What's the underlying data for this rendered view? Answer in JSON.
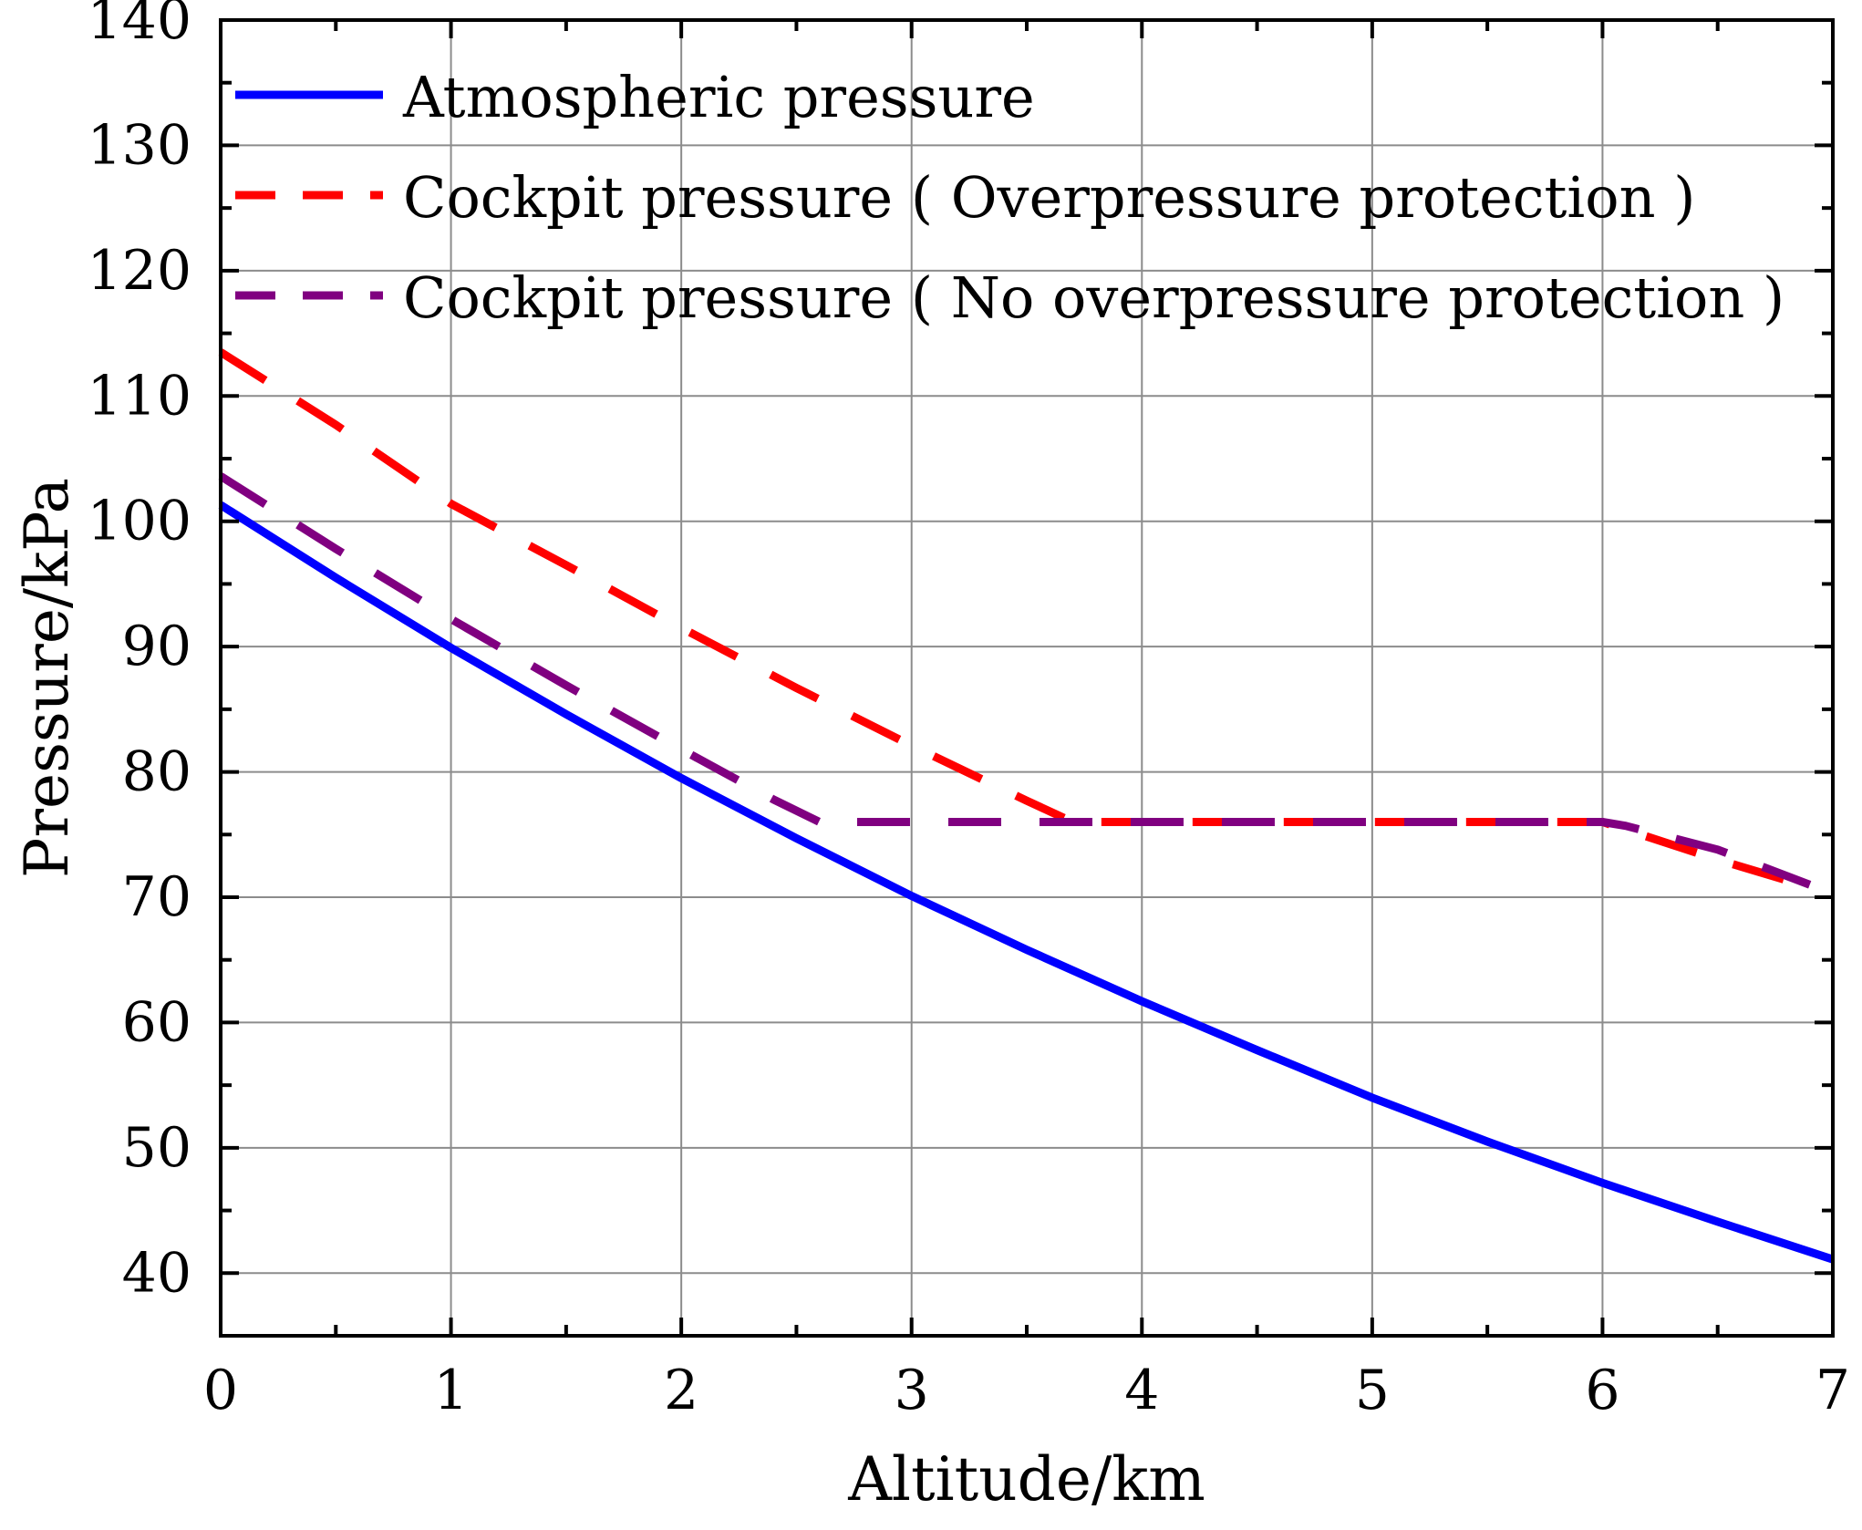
{
  "chart_data": {
    "type": "line",
    "title": "",
    "xlabel": "Altitude/km",
    "ylabel": "Pressure/kPa",
    "xlim": [
      0,
      7
    ],
    "ylim": [
      35,
      140
    ],
    "xticks": [
      0,
      1,
      2,
      3,
      4,
      5,
      6,
      7
    ],
    "yticks": [
      40,
      50,
      60,
      70,
      80,
      90,
      100,
      110,
      120,
      130,
      140
    ],
    "grid": true,
    "legend_position": "top-left",
    "series": [
      {
        "name": "Atmospheric pressure",
        "color": "#0000ff",
        "style": "solid",
        "x": [
          0,
          0.5,
          1,
          1.5,
          2,
          2.5,
          3,
          3.5,
          4,
          4.5,
          5,
          5.5,
          6,
          6.5,
          7
        ],
        "y": [
          101.3,
          95.5,
          89.9,
          84.6,
          79.5,
          74.7,
          70.1,
          65.8,
          61.7,
          57.8,
          54.0,
          50.5,
          47.2,
          44.1,
          41.1
        ]
      },
      {
        "name": "Cockpit pressure ( Overpressure protection )",
        "color": "#ff0000",
        "style": "dashed",
        "x": [
          0,
          0.5,
          1,
          1.5,
          2,
          2.5,
          3,
          3.5,
          3.7,
          4,
          4.5,
          5,
          5.5,
          6,
          6.5,
          6.9
        ],
        "y": [
          113.5,
          107.7,
          101.4,
          96.5,
          91.5,
          86.7,
          82.1,
          77.7,
          76.0,
          76.0,
          76.0,
          76.0,
          76.0,
          76.0,
          73.0,
          70.8
        ]
      },
      {
        "name": "Cockpit pressure ( No overpressure protection )",
        "color": "#800080",
        "style": "dashed",
        "x": [
          0,
          0.5,
          1,
          1.5,
          2,
          2.4,
          2.6,
          3,
          3.5,
          4,
          4.5,
          5,
          5.5,
          6,
          6.1,
          6.5,
          6.9
        ],
        "y": [
          103.6,
          97.8,
          92.2,
          86.9,
          81.8,
          77.8,
          76.0,
          76.0,
          76.0,
          76.0,
          76.0,
          76.0,
          76.0,
          76.0,
          75.7,
          73.8,
          71.0
        ]
      }
    ]
  }
}
